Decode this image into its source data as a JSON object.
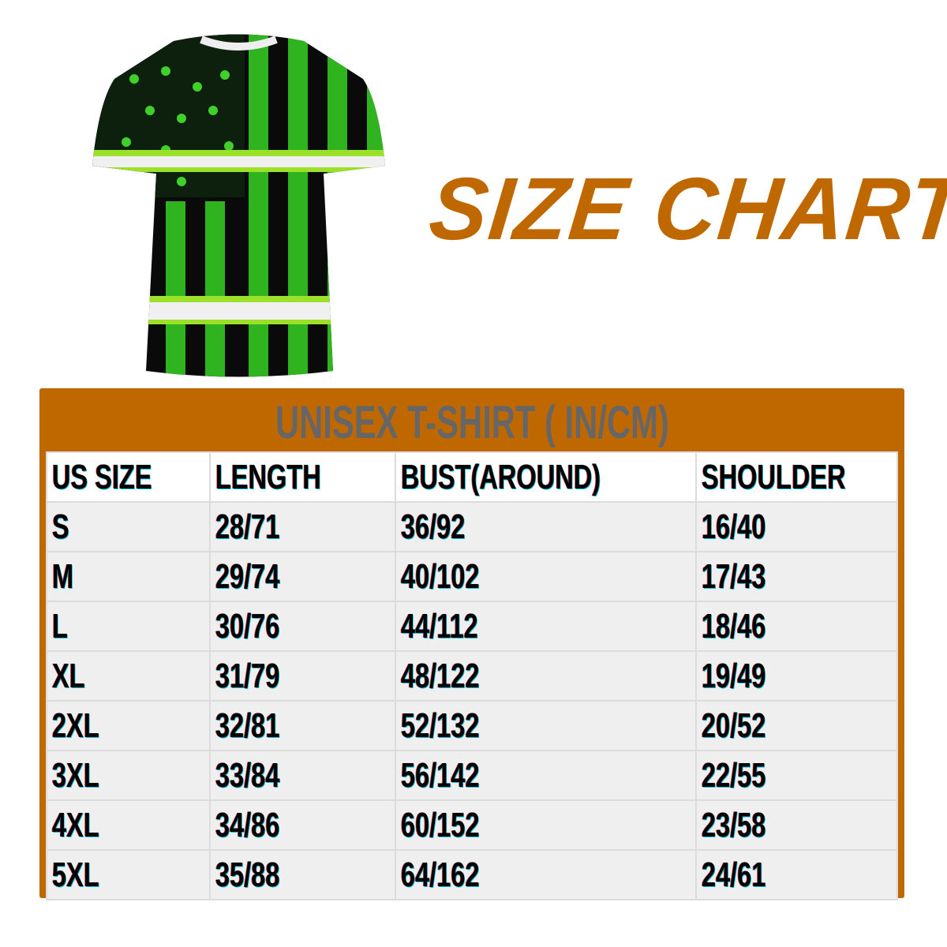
{
  "title": "SIZE CHART",
  "accent_color": "#c06800",
  "product_image": "green camo american flag t-shirt",
  "table": {
    "title": "UNISEX T-SHIRT ( IN/CM)",
    "headers": [
      "US SIZE",
      "LENGTH",
      "BUST(AROUND)",
      "SHOULDER"
    ],
    "rows": [
      [
        "S",
        "28/71",
        "36/92",
        "16/40"
      ],
      [
        "M",
        "29/74",
        "40/102",
        "17/43"
      ],
      [
        "L",
        "30/76",
        "44/112",
        "18/46"
      ],
      [
        "XL",
        "31/79",
        "48/122",
        "19/49"
      ],
      [
        "2XL",
        "32/81",
        "52/132",
        "20/52"
      ],
      [
        "3XL",
        "33/84",
        "56/142",
        "22/55"
      ],
      [
        "4XL",
        "34/86",
        "60/152",
        "23/58"
      ],
      [
        "5XL",
        "35/88",
        "64/162",
        "24/61"
      ]
    ]
  }
}
